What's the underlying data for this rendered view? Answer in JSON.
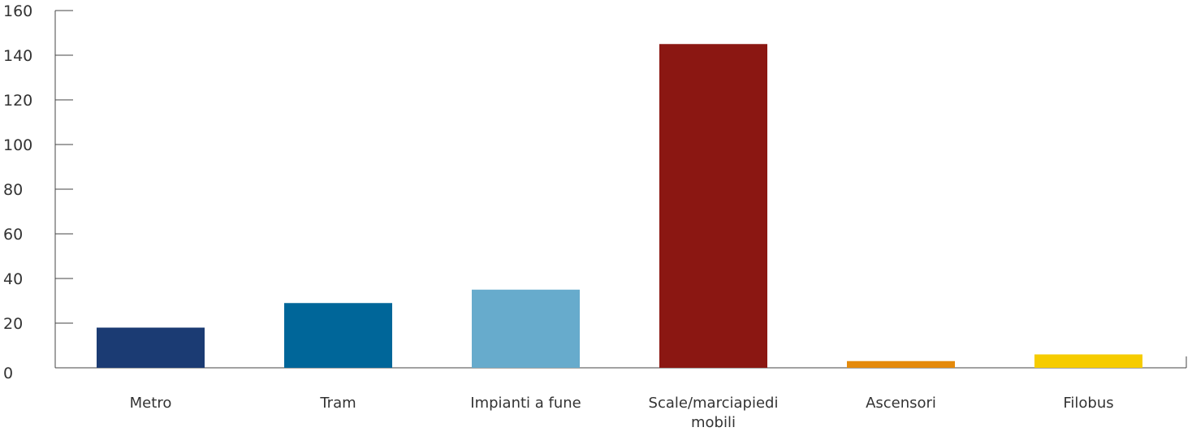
{
  "chart_data": {
    "type": "bar",
    "title": "",
    "xlabel": "",
    "ylabel": "",
    "ylim": [
      0,
      160
    ],
    "yticks": [
      0,
      20,
      40,
      60,
      80,
      100,
      120,
      140,
      160
    ],
    "grid": false,
    "legend": "none",
    "categories": [
      [
        "Metro"
      ],
      [
        "Tram"
      ],
      [
        "Impianti a fune"
      ],
      [
        "Scale/marciapiedi",
        "mobili"
      ],
      [
        "Ascensori"
      ],
      [
        "Filobus"
      ]
    ],
    "values": [
      18,
      29,
      35,
      145,
      3,
      6
    ],
    "colors": [
      "#1b3b73",
      "#006699",
      "#67abcc",
      "#8b1712",
      "#e48a0c",
      "#f6cc00"
    ]
  }
}
